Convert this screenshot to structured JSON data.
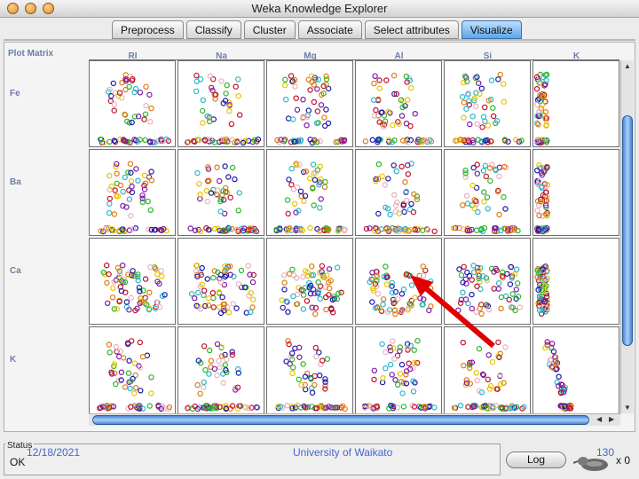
{
  "window": {
    "title": "Weka Knowledge Explorer"
  },
  "tabs": [
    {
      "label": "Preprocess",
      "active": false
    },
    {
      "label": "Classify",
      "active": false
    },
    {
      "label": "Cluster",
      "active": false
    },
    {
      "label": "Associate",
      "active": false
    },
    {
      "label": "Select attributes",
      "active": false
    },
    {
      "label": "Visualize",
      "active": true
    }
  ],
  "plot_matrix": {
    "label": "Plot Matrix",
    "columns": [
      "RI",
      "Na",
      "Mg",
      "Al",
      "Si",
      "K"
    ],
    "rows": [
      "Fe",
      "Ba",
      "Ca",
      "K"
    ]
  },
  "colors": {
    "class_palette": [
      "#1a1aa8",
      "#c0102a",
      "#2bb5c8",
      "#e8b0c0",
      "#e6c400",
      "#2bb52b",
      "#e07a10",
      "#7a1aa8"
    ],
    "highlight_arrow": "#e00000",
    "active_tab": "#5aa6ea"
  },
  "status": {
    "title": "Status",
    "text": "OK",
    "log_label": "Log",
    "count": "x 0"
  },
  "footer": {
    "date": "12/18/2021",
    "org": "University of Waikato",
    "page": "130"
  }
}
